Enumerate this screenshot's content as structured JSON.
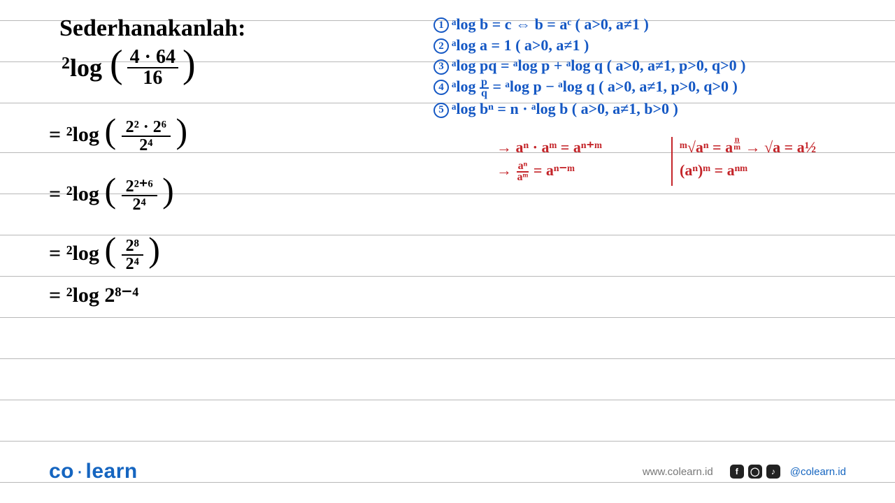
{
  "title": "Sederhanakanlah:",
  "problem": {
    "base": "2",
    "op": "log",
    "frac_num": "4 · 64",
    "frac_den": "16"
  },
  "steps": {
    "s1": {
      "prefix": "= ²log",
      "num": "2² · 2⁶",
      "den": "2⁴"
    },
    "s2": {
      "prefix": "= ²log",
      "num": "2²⁺⁶",
      "den": "2⁴"
    },
    "s3": {
      "prefix": "= ²log",
      "num": "2⁸",
      "den": "2⁴"
    },
    "s4": {
      "text": "= ²log 2⁸⁻⁴"
    }
  },
  "rules": {
    "r1": "ᵃlog b = c ⇔ b = aᶜ  ( a>0, a≠1 )",
    "r2": "ᵃlog a = 1  ( a>0, a≠1 )",
    "r3": "ᵃlog pq = ᵃlog p + ᵃlog q  ( a>0, a≠1, p>0, q>0 )",
    "r4_pre": "ᵃlog ",
    "r4_post": " = ᵃlog p − ᵃlog q  ( a>0, a≠1, p>0, q>0 )",
    "r5": "ᵃlog bⁿ = n · ᵃlog b  ( a>0, a≠1, b>0 )"
  },
  "exp": {
    "e1": "→ aⁿ · aᵐ = aⁿ⁺ᵐ",
    "e2_pre": "→ ",
    "e2_post": " = aⁿ⁻ᵐ",
    "e3_pre": "ᵐ√aⁿ = a",
    "e3_post": " → √a = a½",
    "e4": "(aⁿ)ᵐ = aⁿᵐ"
  },
  "footer": {
    "brand_co": "co",
    "brand_learn": "learn",
    "url": "www.colearn.id",
    "handle": "@colearn.id"
  },
  "colors": {
    "blue": "#1558c4",
    "red": "#c4252a",
    "brand": "#1565c0",
    "line": "#b8b8b8"
  }
}
